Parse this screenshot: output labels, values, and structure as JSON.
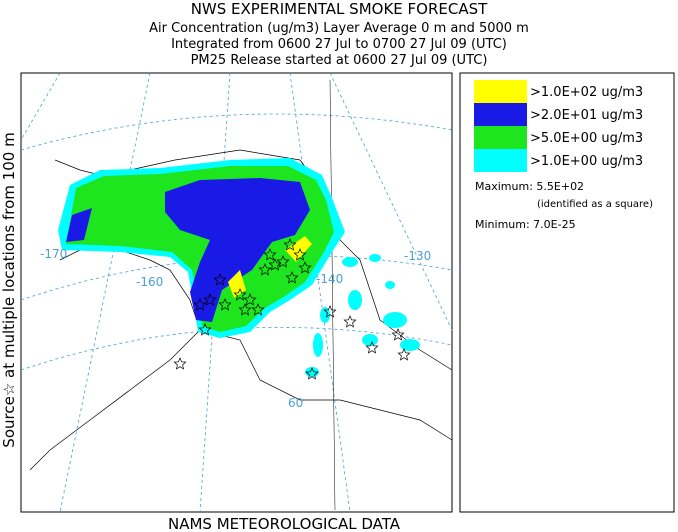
{
  "header": {
    "title": "NWS EXPERIMENTAL SMOKE FORECAST",
    "lines": [
      "Air Concentration (ug/m3) Layer Average    0 m and  5000 m",
      "Integrated from 0600 27 Jul to 0700 27 Jul 09 (UTC)",
      "PM25 Release started at 0600 27 Jul 09 (UTC)"
    ]
  },
  "side_label": "Source☆  at multiple locations     from   100 m",
  "footer": "NAMS METEOROLOGICAL DATA",
  "map_labels": [
    "-170",
    "-160",
    "-140",
    "-130",
    "60"
  ],
  "legend": {
    "items": [
      {
        "label": ">1.0E+02 ug/m3",
        "color": "#ffff00"
      },
      {
        "label": ">2.0E+01 ug/m3",
        "color": "#1a1ae6"
      },
      {
        "label": ">5.0E+00 ug/m3",
        "color": "#1ee61e"
      },
      {
        "label": ">1.0E+00 ug/m3",
        "color": "#00ffff"
      }
    ]
  },
  "stats": {
    "maximum": "Maximum: 5.5E+02",
    "maximum_note": "(identified as a square)",
    "minimum": "Minimum: 7.0E-25"
  }
}
